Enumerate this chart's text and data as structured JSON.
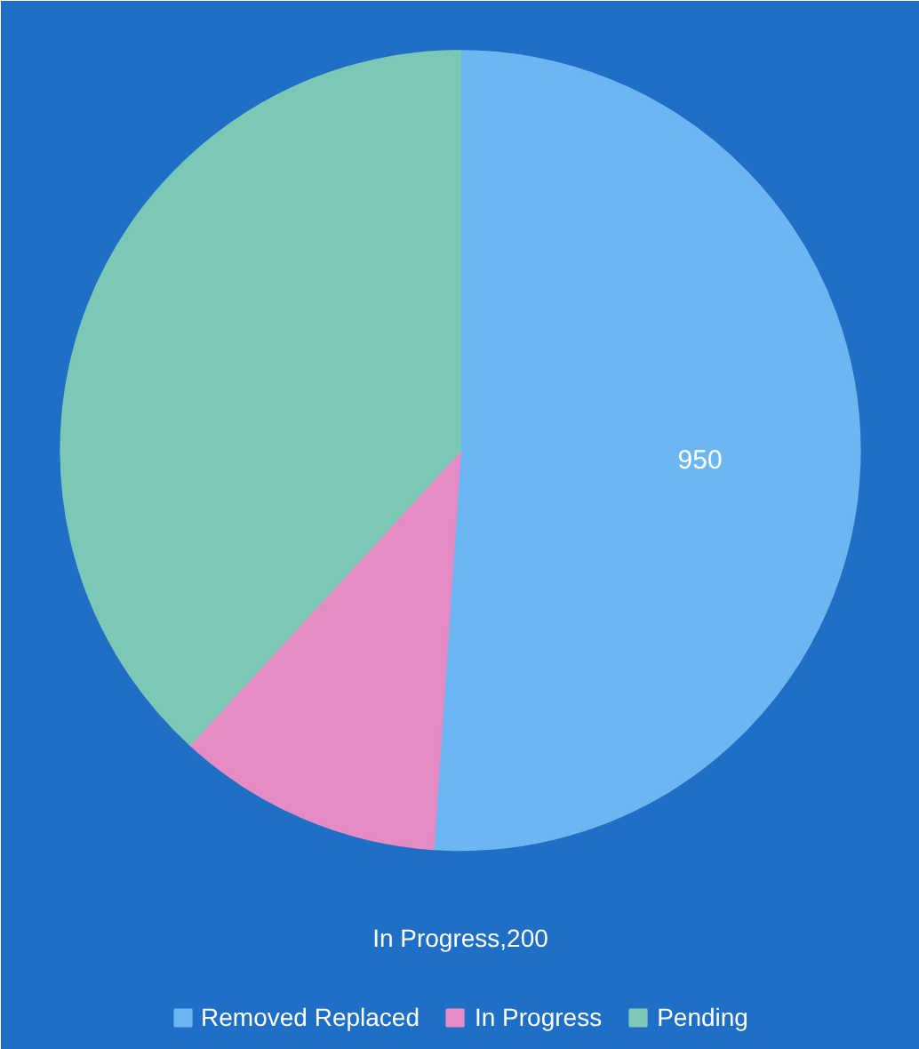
{
  "chart_data": {
    "type": "pie",
    "categories": [
      "Removed Replaced",
      "In Progress",
      "Pending"
    ],
    "values": [
      950,
      200,
      710
    ],
    "colors": [
      "#6cb6f2",
      "#e58cc4",
      "#7cc8b6"
    ],
    "value_labels": [
      "950",
      null,
      null
    ],
    "annotations": [
      "In Progress,200"
    ],
    "legend": "bottom"
  }
}
